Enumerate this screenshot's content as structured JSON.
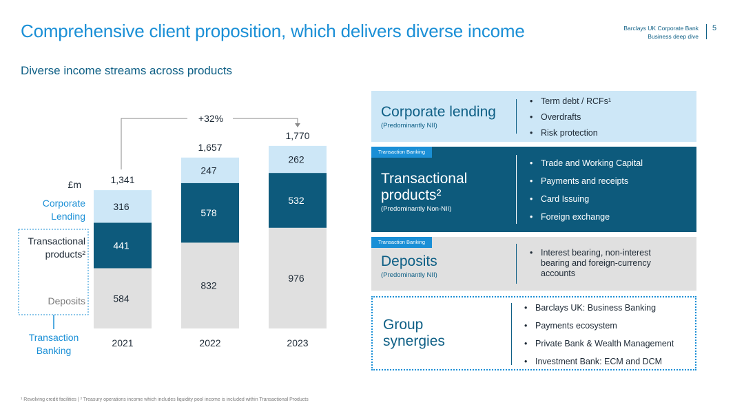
{
  "header": {
    "title": "Comprehensive client proposition, which delivers diverse income",
    "brand_line1": "Barclays UK Corporate Bank",
    "brand_line2": "Business deep dive",
    "page_number": "5"
  },
  "subtitle": "Diverse income streams across products",
  "chart_data": {
    "type": "bar",
    "stacked": true,
    "unit": "£m",
    "categories": [
      "2021",
      "2022",
      "2023"
    ],
    "series": [
      {
        "name": "Deposits",
        "values": [
          584,
          832,
          976
        ],
        "color": "#e0e0e0"
      },
      {
        "name": "Transactional products²",
        "values": [
          441,
          578,
          532
        ],
        "color": "#0d5a7c"
      },
      {
        "name": "Corporate Lending",
        "values": [
          316,
          247,
          262
        ],
        "color": "#cde7f7"
      }
    ],
    "totals": [
      "1,341",
      "1,657",
      "1,770"
    ],
    "growth_annotation": "+32%",
    "legend_group": "Transaction Banking",
    "legend_colors": {
      "corporate": "#1a8fd6",
      "transactional": "#1e2a36",
      "deposits": "#7a7a7a",
      "group": "#1a8fd6"
    }
  },
  "panels": {
    "corporate": {
      "title": "Corporate lending",
      "sub": "(Predominantly NII)",
      "bullets": [
        "Term debt / RCFs¹",
        "Overdrafts",
        "Risk protection"
      ]
    },
    "transactional": {
      "tag": "Transaction Banking",
      "title_line1": "Transactional",
      "title_line2": "products²",
      "sub": "(Predominantly Non-NII)",
      "bullets": [
        "Trade and Working Capital",
        "Payments and receipts",
        "Card Issuing",
        "Foreign exchange"
      ]
    },
    "deposits": {
      "tag": "Transaction Banking",
      "title": "Deposits",
      "sub": "(Predominantly NII)",
      "bullets": [
        "Interest bearing, non-interest",
        "bearing and foreign-currency",
        "accounts"
      ]
    },
    "group": {
      "title_line1": "Group",
      "title_line2": "synergies",
      "bullets": [
        "Barclays UK: Business Banking",
        "Payments ecosystem",
        "Private Bank & Wealth Management",
        "Investment Bank: ECM and DCM"
      ]
    }
  },
  "colors": {
    "brand_blue": "#1a8fd6",
    "dark_teal": "#0d5a7c",
    "light_blue": "#cde7f7",
    "grey": "#e0e0e0",
    "navy_text": "#0e5f85"
  },
  "footnote": "¹ Revolving credit facilities | ² Treasury operations income which includes liquidity pool income is included within Transactional Products"
}
